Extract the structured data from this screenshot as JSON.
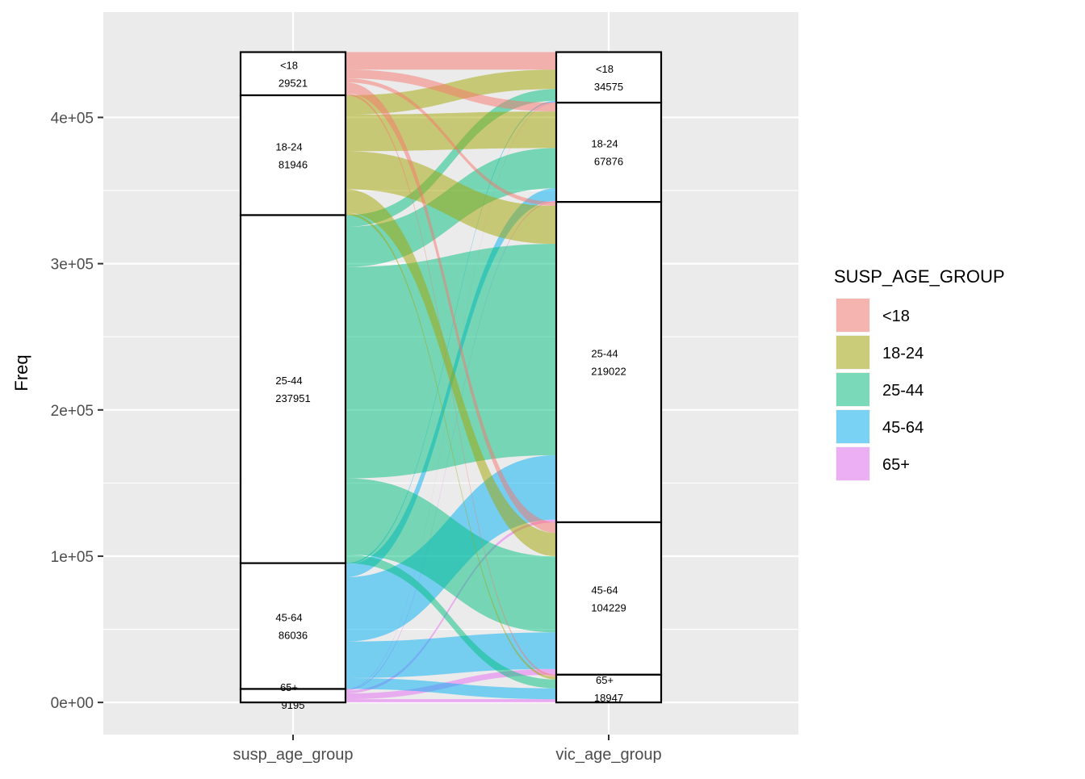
{
  "chart_data": {
    "type": "alluvial",
    "title": "",
    "xlabel": "",
    "ylabel": "Freq",
    "ylim": [
      -22000,
      472000
    ],
    "y_ticks": [
      0,
      100000,
      200000,
      300000,
      400000
    ],
    "y_tick_labels": [
      "0e+00",
      "1e+05",
      "2e+05",
      "3e+05",
      "4e+05"
    ],
    "axes": [
      "susp_age_group",
      "vic_age_group"
    ],
    "legend": {
      "title": "SUSP_AGE_GROUP",
      "position": "right",
      "entries": [
        "<18",
        "18-24",
        "25-44",
        "45-64",
        "65+"
      ]
    },
    "colors": {
      "<18": "#F8766D",
      "18-24": "#A3A500",
      "25-44": "#00BF7D",
      "45-64": "#00B0F6",
      "65+": "#E76BF3",
      "panel": "#EBEBEB",
      "grid": "#FFFFFF"
    },
    "flow_opacity": 0.5,
    "strata": {
      "susp_age_group": [
        {
          "label": "<18",
          "value": 29521
        },
        {
          "label": "18-24",
          "value": 81946
        },
        {
          "label": "25-44",
          "value": 237951
        },
        {
          "label": "45-64",
          "value": 86036
        },
        {
          "label": "65+",
          "value": 9195
        }
      ],
      "vic_age_group": [
        {
          "label": "<18",
          "value": 34575
        },
        {
          "label": "18-24",
          "value": 67876
        },
        {
          "label": "25-44",
          "value": 219022
        },
        {
          "label": "45-64",
          "value": 104229
        },
        {
          "label": "65+",
          "value": 18947
        }
      ]
    },
    "categories": [
      "<18",
      "18-24",
      "25-44",
      "45-64",
      "65+"
    ],
    "flows": [
      [
        12000,
        6000,
        2700,
        7300,
        1521
      ],
      [
        13200,
        25000,
        26000,
        16000,
        1746
      ],
      [
        8000,
        27500,
        144451,
        52000,
        6000
      ],
      [
        1000,
        8600,
        44000,
        25000,
        7436
      ],
      [
        375,
        776,
        1871,
        3929,
        2244
      ]
    ]
  }
}
